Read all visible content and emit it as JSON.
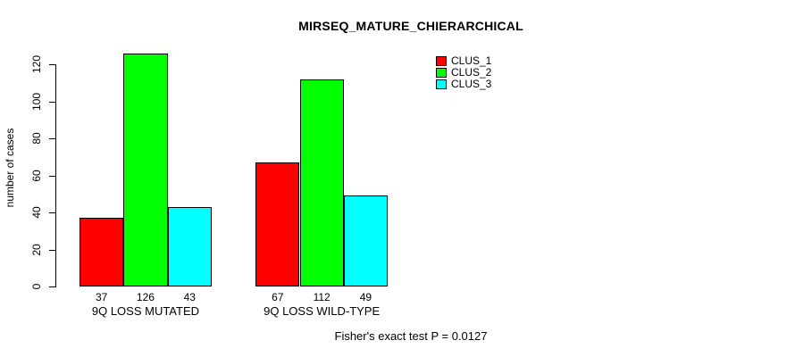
{
  "page": {
    "background_color": "#ffffff",
    "text_color": "#000000"
  },
  "chart_data": {
    "type": "bar",
    "title": "MIRSEQ_MATURE_CHIERARCHICAL",
    "ylabel": "number of cases",
    "xlabel": "",
    "categories": [
      "9Q LOSS MUTATED",
      "9Q LOSS WILD-TYPE"
    ],
    "series": [
      {
        "name": "CLUS_1",
        "color": "#ff0000",
        "values": [
          37,
          67
        ]
      },
      {
        "name": "CLUS_2",
        "color": "#00ff00",
        "values": [
          126,
          112
        ]
      },
      {
        "name": "CLUS_3",
        "color": "#00ffff",
        "values": [
          43,
          49
        ]
      }
    ],
    "bar_value_labels": [
      [
        "37",
        "126",
        "43"
      ],
      [
        "67",
        "112",
        "49"
      ]
    ],
    "yticks": [
      0,
      20,
      40,
      60,
      80,
      100,
      120
    ],
    "ylim": [
      0,
      126
    ],
    "grid": false,
    "legend_position": "top-right",
    "legend_entries": [
      "CLUS_1",
      "CLUS_2",
      "CLUS_3"
    ],
    "bar_border_color": "#000000",
    "footnote": "Fisher's exact test P = 0.0127"
  }
}
